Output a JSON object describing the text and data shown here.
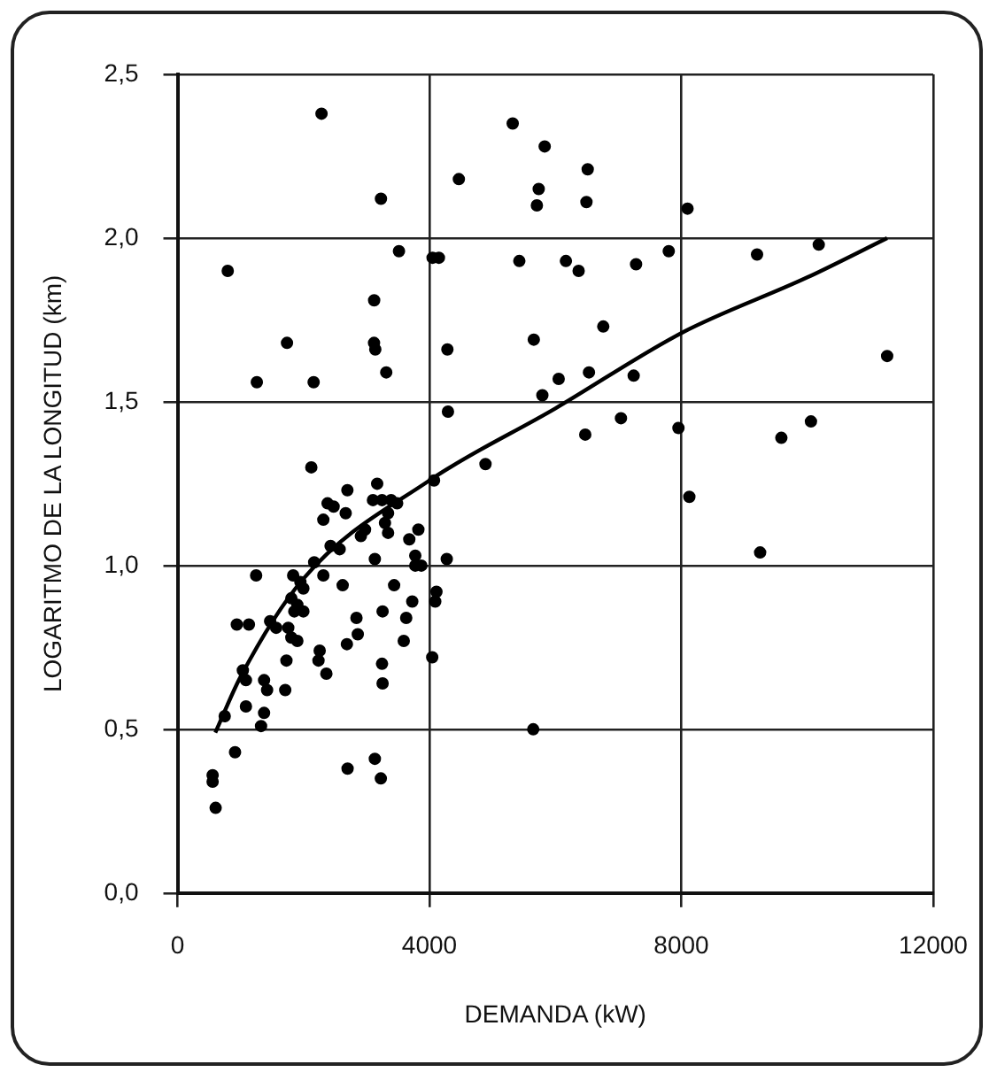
{
  "chart_data": {
    "type": "scatter",
    "xlabel": "DEMANDA (kW)",
    "ylabel": "LOGARITMO DE LA LONGITUD (km)",
    "xlim": [
      0,
      12000
    ],
    "xticks": [
      0,
      4000,
      8000,
      12000
    ],
    "ylim": [
      0,
      2.5
    ],
    "yticks": [
      {
        "value": 0,
        "label": "0,0"
      },
      {
        "value": 0.5,
        "label": "0,5"
      },
      {
        "value": 1,
        "label": "1,0"
      },
      {
        "value": 1.5,
        "label": "1,5"
      },
      {
        "value": 2,
        "label": "2,0"
      },
      {
        "value": 2.5,
        "label": "2,5"
      }
    ],
    "grid": true,
    "legend": false,
    "series": [
      {
        "marker": "circle",
        "color": "#000000",
        "x": [
          2286,
          3230,
          3516,
          4050,
          4150,
          797,
          3122,
          1738,
          3120,
          3140,
          3314,
          1259,
          2161,
          4285,
          4294,
          5322,
          5830,
          4467,
          5735,
          5706,
          5427,
          6167,
          5657,
          6052,
          5793,
          6513,
          6493,
          8098,
          6369,
          7281,
          7800,
          9202,
          10182,
          6760,
          6533,
          7243,
          11268,
          6474,
          7041,
          7954,
          9588,
          10058,
          8127,
          9251,
          5648,
          2124,
          4890,
          4073,
          2697,
          3170,
          2382,
          2478,
          2670,
          2315,
          3103,
          3247,
          3391,
          3487,
          3343,
          3294,
          2977,
          2911,
          3343,
          3824,
          3680,
          2430,
          2574,
          3775,
          2170,
          3133,
          3775,
          3871,
          4275,
          1248,
          1836,
          1951,
          1998,
          2315,
          2622,
          3439,
          4111,
          4092,
          1807,
          1902,
          1998,
          1854,
          3727,
          2841,
          3256,
          3631,
          941,
          1133,
          1470,
          1566,
          1758,
          1807,
          1902,
          2689,
          2862,
          3592,
          2257,
          2238,
          1729,
          4044,
          3247,
          2363,
          1037,
          1086,
          1374,
          1422,
          1710,
          3256,
          1086,
          1374,
          1326,
          749,
          913,
          557,
          557,
          605,
          2700,
          3133,
          3228
        ],
        "values": [
          2.38,
          2.12,
          1.96,
          1.94,
          1.94,
          1.9,
          1.81,
          1.68,
          1.68,
          1.66,
          1.59,
          1.56,
          1.56,
          1.66,
          1.47,
          2.35,
          2.28,
          2.18,
          2.15,
          2.1,
          1.93,
          1.93,
          1.69,
          1.57,
          1.52,
          2.21,
          2.11,
          2.09,
          1.9,
          1.92,
          1.96,
          1.95,
          1.98,
          1.73,
          1.59,
          1.58,
          1.64,
          1.4,
          1.45,
          1.42,
          1.39,
          1.44,
          1.21,
          1.04,
          0.5,
          1.3,
          1.31,
          1.26,
          1.23,
          1.25,
          1.19,
          1.18,
          1.16,
          1.14,
          1.2,
          1.2,
          1.2,
          1.19,
          1.16,
          1.13,
          1.11,
          1.09,
          1.1,
          1.11,
          1.08,
          1.06,
          1.05,
          1.03,
          1.01,
          1.02,
          1,
          1,
          1.02,
          0.97,
          0.97,
          0.95,
          0.93,
          0.97,
          0.94,
          0.94,
          0.92,
          0.89,
          0.9,
          0.88,
          0.86,
          0.86,
          0.89,
          0.84,
          0.86,
          0.84,
          0.82,
          0.82,
          0.83,
          0.81,
          0.81,
          0.78,
          0.77,
          0.76,
          0.79,
          0.77,
          0.74,
          0.71,
          0.71,
          0.72,
          0.7,
          0.67,
          0.68,
          0.65,
          0.65,
          0.62,
          0.62,
          0.64,
          0.57,
          0.55,
          0.51,
          0.54,
          0.43,
          0.36,
          0.34,
          0.26,
          0.38,
          0.41,
          0.35
        ]
      },
      {
        "type": "line",
        "marker": "none",
        "color": "#000000",
        "x": [
          600,
          1000,
          2000,
          4000,
          6000,
          8000,
          10000,
          11268
        ],
        "values": [
          0.49,
          0.66,
          0.96,
          1.26,
          1.48,
          1.71,
          1.88,
          2.0
        ]
      }
    ]
  }
}
